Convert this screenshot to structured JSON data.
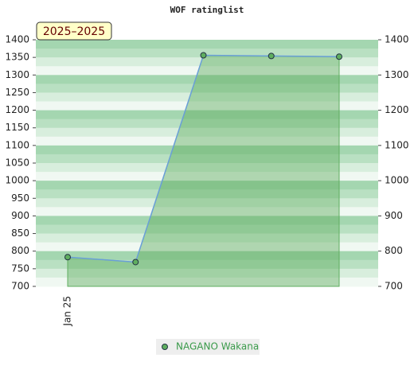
{
  "chart_data": {
    "type": "line",
    "title": "WOF ratinglist",
    "badge": "2025–2025",
    "categories": [
      "Jan 25",
      null,
      null,
      null,
      null
    ],
    "series": [
      {
        "name": "NAGANO Wakana",
        "color": "#5fae5f",
        "line_color": "#6a9fd8",
        "values": [
          783,
          769,
          1356,
          1354,
          1352
        ]
      }
    ],
    "ylim": [
      700,
      1400
    ],
    "yticks": [
      700,
      750,
      800,
      850,
      900,
      950,
      1000,
      1050,
      1100,
      1150,
      1200,
      1250,
      1300,
      1350,
      1400
    ],
    "y2lim": [
      700,
      1400
    ],
    "y2ticks": [
      700,
      800,
      900,
      1000,
      1100,
      1200,
      1300,
      1400
    ]
  }
}
